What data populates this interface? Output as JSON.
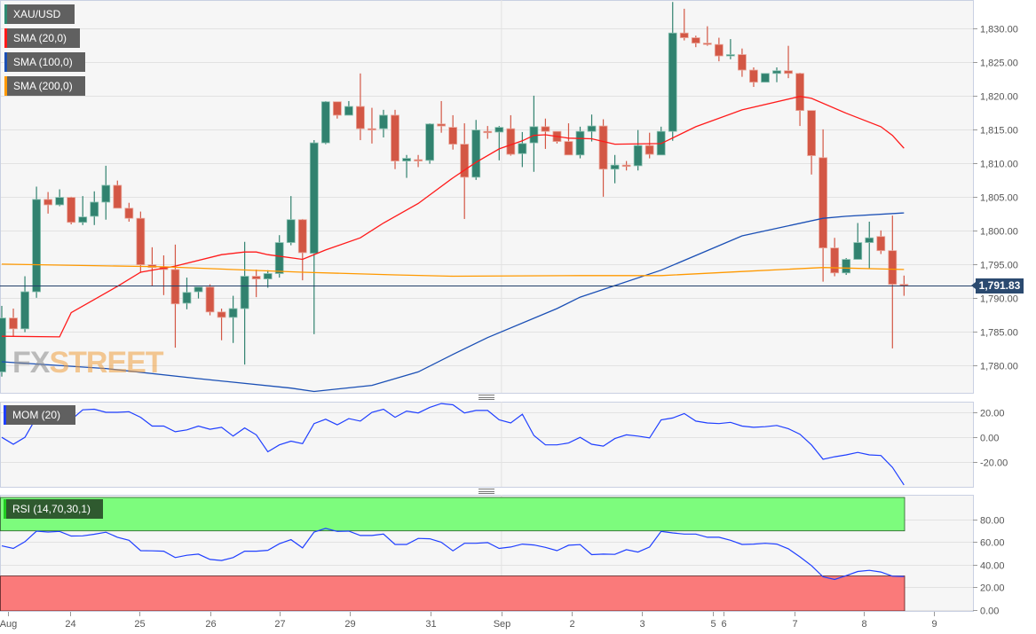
{
  "legend": [
    {
      "label": "XAU/USD",
      "color": "#2f8a72"
    },
    {
      "label": "SMA (20,0)",
      "color": "#ff1a1a"
    },
    {
      "label": "SMA (100,0)",
      "color": "#1a4fb5"
    },
    {
      "label": "SMA (200,0)",
      "color": "#ff9900"
    }
  ],
  "watermark": {
    "fx": "FX",
    "street": "STREET"
  },
  "colors": {
    "up": "#31826f",
    "down": "#d35745",
    "background": "#f6f6f6",
    "grid": "#e2e2e2",
    "last_price": "#23406a",
    "overbought_zone": "#7dfc7d",
    "oversold_zone": "#fa7a7a",
    "indicator_line": "#1f3fff"
  },
  "chart_data": [
    {
      "type": "candlestick",
      "title": "XAU/USD",
      "last_price": 1791.83,
      "last_price_label": "1,791.83",
      "ylim": [
        1775.9,
        1834.2
      ],
      "grid": true,
      "yticks": [
        {
          "value": 1830,
          "label": "1,830.00"
        },
        {
          "value": 1825,
          "label": "1,825.00"
        },
        {
          "value": 1820,
          "label": "1,820.00"
        },
        {
          "value": 1815,
          "label": "1,815.00"
        },
        {
          "value": 1810,
          "label": "1,810.00"
        },
        {
          "value": 1805,
          "label": "1,805.00"
        },
        {
          "value": 1800,
          "label": "1,800.00"
        },
        {
          "value": 1795,
          "label": "1,795.00"
        },
        {
          "value": 1790,
          "label": "1,790.00"
        },
        {
          "value": 1785,
          "label": "1,785.00"
        },
        {
          "value": 1780,
          "label": "1,780.00"
        }
      ],
      "xticks": [
        {
          "label": "Aug",
          "at": 1.5
        },
        {
          "label": "24",
          "at": 6.9
        },
        {
          "label": "25",
          "at": 12.9
        },
        {
          "label": "26",
          "at": 19.0
        },
        {
          "label": "27",
          "at": 25.0
        },
        {
          "label": "29",
          "at": 31.1
        },
        {
          "label": "31",
          "at": 38.1
        },
        {
          "label": "Sep",
          "at": 44.2
        },
        {
          "label": "2",
          "at": 50.3
        },
        {
          "label": "3",
          "at": 56.3
        },
        {
          "label": "5",
          "at": 62.5
        },
        {
          "label": "6",
          "at": 63.4
        },
        {
          "label": "7",
          "at": 69.5
        },
        {
          "label": "8",
          "at": 75.5
        },
        {
          "label": "9",
          "at": 81.6
        }
      ],
      "ohlc": [
        [
          1779.0,
          1788.8,
          1778.3,
          1787.0
        ],
        [
          1787.0,
          1788.4,
          1784.3,
          1785.4
        ],
        [
          1785.4,
          1793.2,
          1784.9,
          1790.9
        ],
        [
          1790.9,
          1806.5,
          1790.0,
          1804.6
        ],
        [
          1804.6,
          1805.7,
          1802.5,
          1803.8
        ],
        [
          1803.8,
          1806.1,
          1803.6,
          1804.9
        ],
        [
          1804.9,
          1805.0,
          1800.9,
          1801.2
        ],
        [
          1801.2,
          1805.1,
          1800.8,
          1802.0
        ],
        [
          1802.1,
          1805.8,
          1800.8,
          1804.2
        ],
        [
          1804.2,
          1809.6,
          1801.6,
          1806.7
        ],
        [
          1806.7,
          1807.4,
          1803.3,
          1803.3
        ],
        [
          1803.3,
          1804.1,
          1801.3,
          1801.8
        ],
        [
          1801.8,
          1802.8,
          1793.7,
          1794.9
        ],
        [
          1794.9,
          1797.5,
          1791.8,
          1794.5
        ],
        [
          1794.6,
          1796.3,
          1790.4,
          1794.2
        ],
        [
          1794.2,
          1797.9,
          1782.6,
          1789.1
        ],
        [
          1789.2,
          1793.0,
          1788.3,
          1790.8
        ],
        [
          1790.9,
          1791.6,
          1789.9,
          1791.6
        ],
        [
          1791.6,
          1792.0,
          1787.4,
          1787.9
        ],
        [
          1787.9,
          1788.4,
          1783.7,
          1787.1
        ],
        [
          1787.1,
          1790.3,
          1783.3,
          1788.4
        ],
        [
          1788.4,
          1798.3,
          1780.1,
          1793.2
        ],
        [
          1793.2,
          1794.2,
          1790.1,
          1792.8
        ],
        [
          1792.8,
          1794.1,
          1791.5,
          1793.6
        ],
        [
          1793.6,
          1799.3,
          1793.0,
          1798.2
        ],
        [
          1798.2,
          1805.1,
          1797.8,
          1801.6
        ],
        [
          1801.6,
          1801.7,
          1792.6,
          1796.7
        ],
        [
          1796.6,
          1813.4,
          1784.6,
          1813.0
        ],
        [
          1813.0,
          1819.2,
          1812.8,
          1819.1
        ],
        [
          1819.1,
          1819.1,
          1816.6,
          1817.1
        ],
        [
          1817.1,
          1819.2,
          1817.1,
          1818.4
        ],
        [
          1818.4,
          1823.3,
          1813.4,
          1815.1
        ],
        [
          1815.1,
          1818.2,
          1812.9,
          1815.0
        ],
        [
          1815.1,
          1817.9,
          1813.8,
          1817.1
        ],
        [
          1817.1,
          1817.9,
          1809.1,
          1810.3
        ],
        [
          1810.3,
          1811.2,
          1807.8,
          1810.7
        ],
        [
          1810.5,
          1811.2,
          1809.4,
          1810.4
        ],
        [
          1810.4,
          1815.9,
          1809.9,
          1815.8
        ],
        [
          1815.8,
          1819.2,
          1814.5,
          1815.5
        ],
        [
          1815.3,
          1817.1,
          1812.0,
          1812.8
        ],
        [
          1812.8,
          1815.9,
          1801.7,
          1807.9
        ],
        [
          1807.9,
          1816.4,
          1807.5,
          1814.9
        ],
        [
          1814.7,
          1815.5,
          1813.6,
          1814.6
        ],
        [
          1814.6,
          1815.5,
          1810.4,
          1815.3
        ],
        [
          1815.1,
          1817.1,
          1811.1,
          1811.3
        ],
        [
          1811.4,
          1814.6,
          1809.4,
          1812.9
        ],
        [
          1813.0,
          1820.0,
          1808.7,
          1815.4
        ],
        [
          1815.4,
          1816.6,
          1812.1,
          1814.7
        ],
        [
          1814.7,
          1814.7,
          1812.9,
          1813.2
        ],
        [
          1813.2,
          1815.9,
          1811.2,
          1811.2
        ],
        [
          1811.2,
          1815.4,
          1810.7,
          1814.7
        ],
        [
          1814.7,
          1817.2,
          1813.2,
          1815.5
        ],
        [
          1815.5,
          1816.5,
          1805.0,
          1809.1
        ],
        [
          1809.1,
          1811.2,
          1807.0,
          1809.7
        ],
        [
          1809.7,
          1810.3,
          1808.9,
          1809.5
        ],
        [
          1809.6,
          1814.9,
          1808.9,
          1812.6
        ],
        [
          1812.6,
          1814.5,
          1810.7,
          1811.3
        ],
        [
          1811.2,
          1815.4,
          1811.2,
          1814.7
        ],
        [
          1814.7,
          1833.9,
          1813.3,
          1829.3
        ],
        [
          1829.3,
          1832.9,
          1828.2,
          1828.6
        ],
        [
          1828.6,
          1828.9,
          1827.2,
          1827.8
        ],
        [
          1827.8,
          1830.3,
          1827.4,
          1827.6
        ],
        [
          1827.6,
          1828.6,
          1825.1,
          1825.9
        ],
        [
          1825.9,
          1828.4,
          1825.4,
          1826.1
        ],
        [
          1826.1,
          1827.0,
          1822.8,
          1823.8
        ],
        [
          1823.8,
          1824.2,
          1821.3,
          1822.0
        ],
        [
          1822.0,
          1823.3,
          1822.0,
          1823.3
        ],
        [
          1823.3,
          1824.2,
          1822.0,
          1823.7
        ],
        [
          1823.7,
          1827.4,
          1822.6,
          1823.3
        ],
        [
          1823.3,
          1823.4,
          1815.5,
          1817.8
        ],
        [
          1817.8,
          1817.8,
          1808.3,
          1811.1
        ],
        [
          1810.8,
          1815.0,
          1792.4,
          1797.4
        ],
        [
          1797.4,
          1798.9,
          1793.2,
          1793.7
        ],
        [
          1793.7,
          1795.9,
          1793.4,
          1795.7
        ],
        [
          1795.7,
          1801.1,
          1795.7,
          1798.2
        ],
        [
          1798.2,
          1801.3,
          1794.3,
          1798.9
        ],
        [
          1799.1,
          1800.0,
          1796.5,
          1797.0
        ],
        [
          1797.0,
          1802.2,
          1782.5,
          1792.0
        ],
        [
          1792.0,
          1793.3,
          1790.3,
          1791.8
        ]
      ],
      "overlays": [
        {
          "name": "SMA (20,0)",
          "color": "#ff1a1a",
          "points": [
            [
              1,
              1784.3
            ],
            [
              6,
              1784.2
            ],
            [
              7,
              1787.8
            ],
            [
              11,
              1791.7
            ],
            [
              13,
              1793.8
            ],
            [
              16,
              1794.7
            ],
            [
              20,
              1796.4
            ],
            [
              22,
              1796.8
            ],
            [
              23,
              1796.8
            ],
            [
              24,
              1796.4
            ],
            [
              27,
              1795.7
            ],
            [
              29,
              1797.1
            ],
            [
              32,
              1798.9
            ],
            [
              34,
              1801.1
            ],
            [
              37,
              1804.0
            ],
            [
              40,
              1807.8
            ],
            [
              42,
              1810.1
            ],
            [
              44,
              1812.1
            ],
            [
              46,
              1813.3
            ],
            [
              47,
              1814.1
            ],
            [
              48,
              1814.2
            ],
            [
              50,
              1813.7
            ],
            [
              52,
              1813.6
            ],
            [
              54,
              1812.8
            ],
            [
              58,
              1812.9
            ],
            [
              61,
              1815.4
            ],
            [
              65,
              1817.9
            ],
            [
              70,
              1819.9
            ],
            [
              71,
              1819.6
            ],
            [
              74,
              1817.4
            ],
            [
              77,
              1815.4
            ],
            [
              78,
              1814.1
            ],
            [
              79,
              1812.2
            ]
          ]
        },
        {
          "name": "SMA (100,0)",
          "color": "#1a4fb5",
          "points": [
            [
              1,
              1780.5
            ],
            [
              10,
              1779.5
            ],
            [
              18,
              1778.0
            ],
            [
              26,
              1776.6
            ],
            [
              28,
              1776.1
            ],
            [
              33,
              1777.0
            ],
            [
              37,
              1779.0
            ],
            [
              40,
              1781.6
            ],
            [
              43,
              1784.1
            ],
            [
              49,
              1788.4
            ],
            [
              51,
              1790.1
            ],
            [
              58,
              1794.1
            ],
            [
              65,
              1799.2
            ],
            [
              72,
              1801.8
            ],
            [
              74,
              1802.1
            ],
            [
              79,
              1802.6
            ]
          ]
        },
        {
          "name": "SMA (200,0)",
          "color": "#ff9900",
          "points": [
            [
              1,
              1795.0
            ],
            [
              15,
              1794.6
            ],
            [
              27,
              1793.8
            ],
            [
              35,
              1793.4
            ],
            [
              40,
              1793.2
            ],
            [
              51,
              1793.3
            ],
            [
              58,
              1793.3
            ],
            [
              65,
              1793.9
            ],
            [
              72,
              1794.5
            ],
            [
              79,
              1794.2
            ]
          ]
        }
      ]
    },
    {
      "type": "line",
      "title": "MOM (20)",
      "ylim": [
        -39.5,
        28.5
      ],
      "yticks": [
        {
          "value": 20,
          "label": "20.00"
        },
        {
          "value": 0,
          "label": "0.00"
        },
        {
          "value": -20,
          "label": "-20.00"
        }
      ],
      "values": [
        0,
        -5.5,
        0,
        16,
        16,
        18.5,
        14,
        22,
        22.5,
        20,
        20,
        20.5,
        16,
        9,
        9,
        4.5,
        6,
        9,
        6.5,
        8,
        1,
        7.5,
        2,
        -11.5,
        -6,
        -3,
        -5,
        11,
        14.5,
        10,
        15,
        13,
        20,
        22.5,
        16,
        21,
        19.5,
        24,
        27,
        26,
        19.5,
        21.5,
        21.5,
        14,
        11.5,
        18.5,
        1.5,
        -6,
        -6,
        -4.5,
        0,
        -5.5,
        -7,
        -1,
        2,
        1,
        -0.5,
        14,
        15.5,
        19,
        13,
        11.5,
        11,
        12,
        9,
        8,
        8.5,
        9.5,
        7,
        2.5,
        -6,
        -17.5,
        -15.5,
        -14,
        -12,
        -14,
        -14.5,
        -24,
        -38
      ]
    },
    {
      "type": "line",
      "title": "RSI (14,70,30,1)",
      "ylim": [
        -1,
        102
      ],
      "overbought": 70,
      "oversold": 30,
      "yticks": [
        {
          "value": 80,
          "label": "80.00"
        },
        {
          "value": 60,
          "label": "60.00"
        },
        {
          "value": 40,
          "label": "40.00"
        },
        {
          "value": 20,
          "label": "20.00"
        },
        {
          "value": 0,
          "label": "0.00"
        }
      ],
      "values": [
        56.7,
        54.4,
        60.4,
        69.8,
        69,
        69.5,
        65.4,
        65.6,
        67,
        68.8,
        64.3,
        61.7,
        52.5,
        52.3,
        52,
        46.3,
        48.4,
        49.4,
        44.7,
        43.7,
        46.3,
        52,
        52,
        52.8,
        58.6,
        62.2,
        54.9,
        69,
        72.2,
        69.5,
        69.8,
        65.9,
        65.9,
        67.2,
        58,
        58,
        63.3,
        63,
        59.9,
        52.3,
        59,
        59,
        59.6,
        54.4,
        55.7,
        58.3,
        57.5,
        55.4,
        52.5,
        57.3,
        57.8,
        48.9,
        49.4,
        49.2,
        53.3,
        51.2,
        55.7,
        69.5,
        68.2,
        67.2,
        67.2,
        64.3,
        64.3,
        61.7,
        58,
        58.3,
        59,
        58.3,
        54.1,
        47,
        39.2,
        29.3,
        26.9,
        30.3,
        34,
        35,
        33.5,
        29.8,
        29.5
      ]
    }
  ]
}
